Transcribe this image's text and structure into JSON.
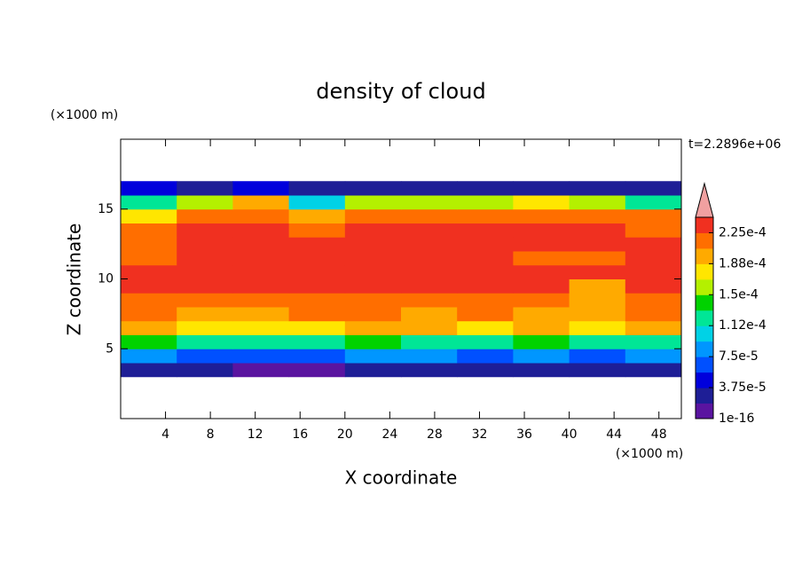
{
  "chart_data": {
    "type": "contour",
    "title": "density of cloud",
    "x_label": "X coordinate",
    "y_label": "Z coordinate",
    "x_unit": "(×1000 m)",
    "y_unit": "(×1000 m)",
    "annotation": "t=2.2896e+06",
    "xlim": [
      0,
      50
    ],
    "ylim": [
      0,
      20
    ],
    "xticks": [
      4,
      8,
      12,
      16,
      20,
      24,
      28,
      32,
      36,
      40,
      44,
      48
    ],
    "yticks": [
      5,
      10,
      15
    ],
    "x": [
      2.5,
      7.5,
      12.5,
      17.5,
      22.5,
      27.5,
      32.5,
      37.5,
      42.5,
      47.5
    ],
    "y": [
      3.5,
      4.5,
      5.5,
      6.5,
      7.5,
      8.5,
      9.5,
      10.5,
      11.5,
      12.5,
      13.5,
      14.5,
      15.5,
      16.5
    ],
    "z": [
      [
        2e-05,
        2e-05,
        1e-05,
        1e-05,
        2e-05,
        2e-05,
        2e-05,
        2e-05,
        2e-05,
        2e-05
      ],
      [
        8e-05,
        7e-05,
        7e-05,
        7e-05,
        8e-05,
        8e-05,
        7e-05,
        8e-05,
        7e-05,
        8e-05
      ],
      [
        0.00014,
        0.00013,
        0.00013,
        0.00013,
        0.00014,
        0.00013,
        0.00013,
        0.00014,
        0.00013,
        0.00013
      ],
      [
        0.00019,
        0.00018,
        0.00018,
        0.00018,
        0.00019,
        0.00019,
        0.00018,
        0.00019,
        0.00018,
        0.00019
      ],
      [
        0.00021,
        0.0002,
        0.0002,
        0.00021,
        0.00021,
        0.0002,
        0.00021,
        0.0002,
        0.00019,
        0.00021
      ],
      [
        0.00022,
        0.00022,
        0.00022,
        0.00022,
        0.00022,
        0.00022,
        0.00022,
        0.00022,
        0.00019,
        0.00022
      ],
      [
        0.00023,
        0.00023,
        0.00023,
        0.00023,
        0.00023,
        0.00023,
        0.00023,
        0.00023,
        0.0002,
        0.00023
      ],
      [
        0.00023,
        0.00023,
        0.00023,
        0.00023,
        0.00023,
        0.00023,
        0.00023,
        0.00023,
        0.00023,
        0.00023
      ],
      [
        0.00022,
        0.00023,
        0.00023,
        0.00023,
        0.00023,
        0.00023,
        0.00023,
        0.00022,
        0.00022,
        0.00023
      ],
      [
        0.00021,
        0.00023,
        0.00023,
        0.00023,
        0.00023,
        0.00023,
        0.00023,
        0.00023,
        0.00023,
        0.00023
      ],
      [
        0.00021,
        0.00023,
        0.00023,
        0.00022,
        0.00023,
        0.00023,
        0.00023,
        0.00023,
        0.00023,
        0.00022
      ],
      [
        0.00018,
        0.00022,
        0.00022,
        0.0002,
        0.00022,
        0.00022,
        0.00022,
        0.00022,
        0.00022,
        0.00021
      ],
      [
        0.00012,
        0.00016,
        0.00019,
        0.00011,
        0.00016,
        0.00015,
        0.00016,
        0.00017,
        0.00015,
        0.00012
      ],
      [
        4e-05,
        3e-05,
        4e-05,
        2e-05,
        3e-05,
        3e-05,
        3e-05,
        3e-05,
        3e-05,
        2e-05
      ]
    ],
    "colorbar_ticks": [
      {
        "value": 1e-16,
        "label": "1e-16"
      },
      {
        "value": 3.75e-05,
        "label": "3.75e-5"
      },
      {
        "value": 7.5e-05,
        "label": "7.5e-5"
      },
      {
        "value": 0.000112,
        "label": "1.12e-4"
      },
      {
        "value": 0.00015,
        "label": "1.5e-4"
      },
      {
        "value": 0.000188,
        "label": "1.88e-4"
      },
      {
        "value": 0.000225,
        "label": "2.25e-4"
      }
    ],
    "colors": [
      "#5a14a0",
      "#1e1e96",
      "#0000dc",
      "#0050ff",
      "#0096ff",
      "#00d2e6",
      "#00e696",
      "#00d200",
      "#b4f000",
      "#ffe600",
      "#ffaa00",
      "#ff6e00",
      "#f03020"
    ],
    "extend_color": "#f0a0a0"
  }
}
